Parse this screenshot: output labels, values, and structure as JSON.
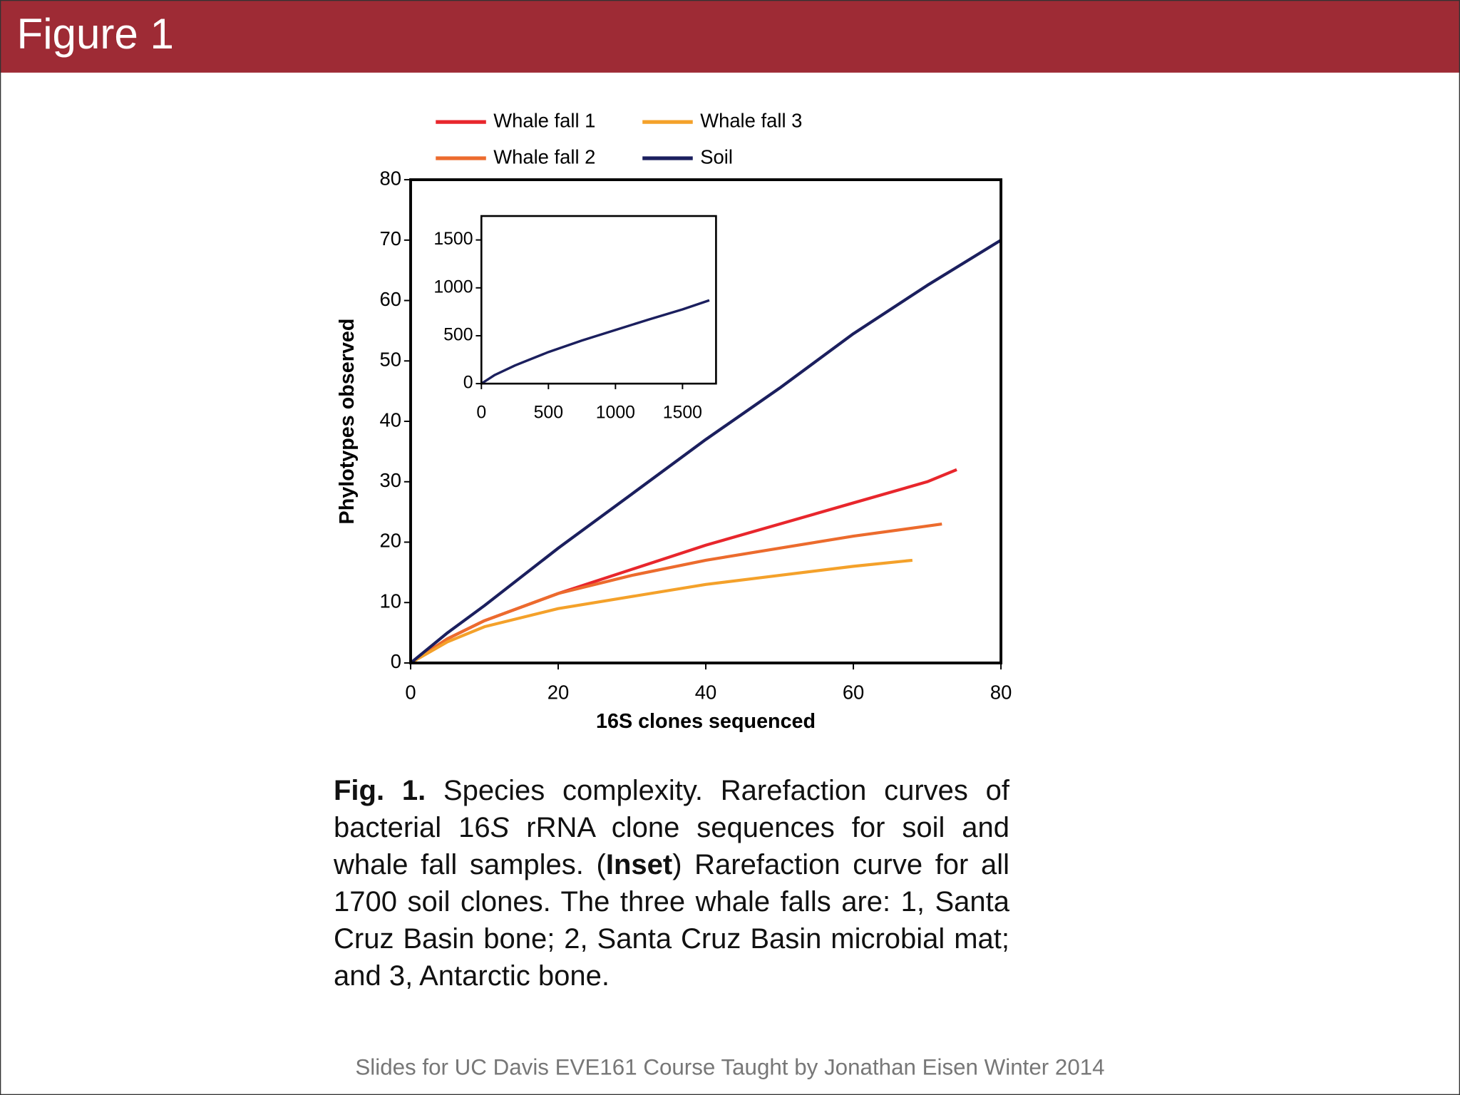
{
  "header": {
    "title": "Figure 1"
  },
  "chart_data": [
    {
      "type": "line",
      "xlabel": "16S clones sequenced",
      "ylabel": "Phylotypes observed",
      "xlim": [
        0,
        80
      ],
      "ylim": [
        0,
        80
      ],
      "xticks": [
        0,
        20,
        40,
        60,
        80
      ],
      "yticks": [
        0,
        10,
        20,
        30,
        40,
        50,
        60,
        70,
        80
      ],
      "series": [
        {
          "name": "Whale fall 1",
          "color": "#e8262c",
          "x": [
            0,
            5,
            10,
            20,
            30,
            40,
            50,
            60,
            70,
            74
          ],
          "values": [
            0,
            4,
            7,
            11.5,
            15.5,
            19.5,
            23,
            26.5,
            30,
            32
          ]
        },
        {
          "name": "Whale fall 2",
          "color": "#ec6b2d",
          "x": [
            0,
            5,
            10,
            20,
            30,
            40,
            50,
            60,
            72
          ],
          "values": [
            0,
            4,
            7,
            11.5,
            14.5,
            17,
            19,
            21,
            23
          ]
        },
        {
          "name": "Whale fall 3",
          "color": "#f4a12a",
          "x": [
            0,
            5,
            10,
            20,
            30,
            40,
            50,
            60,
            68
          ],
          "values": [
            0,
            3.5,
            6,
            9,
            11,
            13,
            14.5,
            16,
            17
          ]
        },
        {
          "name": "Soil",
          "color": "#1b1f5e",
          "x": [
            0,
            5,
            10,
            20,
            30,
            40,
            50,
            60,
            70,
            80
          ],
          "values": [
            0,
            5,
            9.5,
            19,
            28,
            37,
            45.5,
            54.5,
            62.5,
            70
          ]
        }
      ]
    },
    {
      "type": "line",
      "xlim": [
        0,
        1750
      ],
      "ylim": [
        0,
        1750
      ],
      "xticks": [
        0,
        500,
        1000,
        1500
      ],
      "yticks": [
        0,
        500,
        1000,
        1500
      ],
      "series": [
        {
          "color": "#1b1f5e",
          "x": [
            0,
            100,
            250,
            500,
            750,
            1000,
            1250,
            1500,
            1700
          ],
          "values": [
            0,
            90,
            190,
            330,
            450,
            560,
            670,
            775,
            870
          ]
        }
      ]
    }
  ],
  "caption": [
    "Fig. 1.",
    "Species complexity. Rarefaction curves of bacterial 16",
    "S",
    "rRNA clone sequences for soil and whale fall samples. (",
    "Inset",
    ") Rarefaction curve for all 1700 soil clones. The three whale falls are: 1, Santa Cruz Basin bone; 2, Santa Cruz Basin microbial mat; and 3, Antarctic bone."
  ],
  "footer": "Slides for UC Davis EVE161 Course Taught by Jonathan Eisen Winter 2014"
}
